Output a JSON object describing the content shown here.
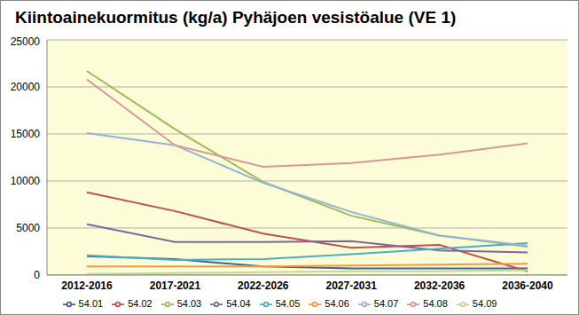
{
  "chart_data": {
    "type": "line",
    "title": "Kiintoainekuormitus (kg/a) Pyhäjoen vesistöalue (VE 1)",
    "categories": [
      "2012-2016",
      "2017-2021",
      "2022-2026",
      "2027-2031",
      "2032-2036",
      "2036-2040"
    ],
    "series": [
      {
        "name": "54.01",
        "color": "#3C6496",
        "values": [
          2000,
          1700,
          900,
          700,
          700,
          700
        ]
      },
      {
        "name": "54.02",
        "color": "#C0504D",
        "values": [
          8800,
          6800,
          4400,
          2900,
          3200,
          400
        ]
      },
      {
        "name": "54.03",
        "color": "#9BBB59",
        "values": [
          21700,
          15500,
          9900,
          6300,
          4200,
          3000
        ]
      },
      {
        "name": "54.04",
        "color": "#8064A2",
        "values": [
          5400,
          3500,
          3500,
          3600,
          2600,
          2400
        ]
      },
      {
        "name": "54.05",
        "color": "#4BACC6",
        "values": [
          2100,
          1600,
          1700,
          2200,
          2800,
          3400
        ]
      },
      {
        "name": "54.06",
        "color": "#F79646",
        "values": [
          900,
          900,
          900,
          1000,
          1100,
          1200
        ]
      },
      {
        "name": "54.07",
        "color": "#95B3D7",
        "values": [
          15100,
          13800,
          9800,
          6700,
          4200,
          3100
        ]
      },
      {
        "name": "54.08",
        "color": "#D99694",
        "values": [
          20800,
          13800,
          11500,
          11900,
          12800,
          14000
        ]
      },
      {
        "name": "54.09",
        "color": "#C3D69B",
        "values": [
          100,
          200,
          300,
          400,
          400,
          500
        ]
      }
    ],
    "ylim": [
      0,
      25000
    ],
    "yticks": [
      0,
      5000,
      10000,
      15000,
      20000,
      25000
    ],
    "grid": true,
    "legend": "bottom"
  }
}
